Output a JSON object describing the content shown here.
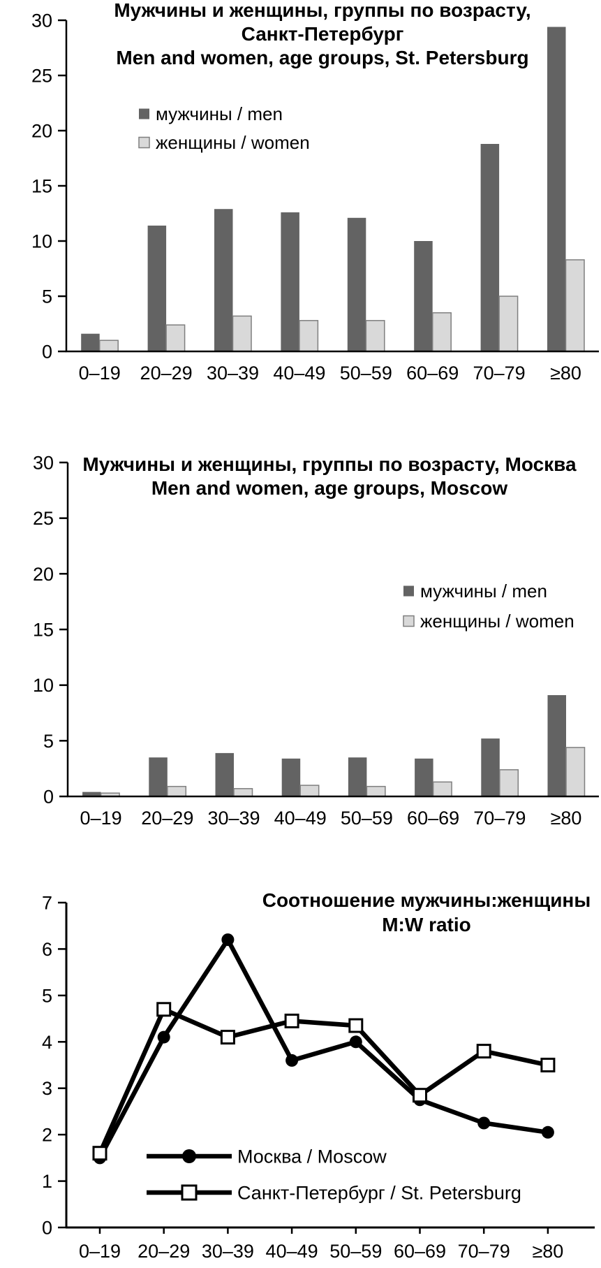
{
  "figure": {
    "background": "#ffffff",
    "text_color": "#000000"
  },
  "chart_data": [
    {
      "id": "spb-age-bars",
      "type": "bar",
      "title_lines": [
        "Мужчины и женщины, группы по возрасту,",
        "Санкт-Петербург",
        "Men and women, age groups, St. Petersburg"
      ],
      "categories": [
        "0–19",
        "20–29",
        "30–39",
        "40–49",
        "50–59",
        "60–69",
        "70–79",
        "≥80"
      ],
      "series": [
        {
          "name": "мужчины / men",
          "color": "#636363",
          "values": [
            1.6,
            11.4,
            12.9,
            12.6,
            12.1,
            10.0,
            18.8,
            29.4
          ]
        },
        {
          "name": "женщины / women",
          "color": "#d9d9d9",
          "border": "#7f7f7f",
          "values": [
            1.0,
            2.4,
            3.2,
            2.8,
            2.8,
            3.5,
            5.0,
            8.3
          ]
        }
      ],
      "ylim": [
        0,
        30
      ],
      "yticks": [
        0,
        5,
        10,
        15,
        20,
        25,
        30
      ],
      "grid": false,
      "legend_position": "upper-left"
    },
    {
      "id": "moscow-age-bars",
      "type": "bar",
      "title_lines": [
        "Мужчины и женщины, группы по возрасту, Москва",
        "Men and women, age groups, Moscow"
      ],
      "categories": [
        "0–19",
        "20–29",
        "30–39",
        "40–49",
        "50–59",
        "60–69",
        "70–79",
        "≥80"
      ],
      "series": [
        {
          "name": "мужчины / men",
          "color": "#636363",
          "values": [
            0.4,
            3.5,
            3.9,
            3.4,
            3.5,
            3.4,
            5.2,
            9.1
          ]
        },
        {
          "name": "женщины / women",
          "color": "#d9d9d9",
          "border": "#7f7f7f",
          "values": [
            0.3,
            0.9,
            0.7,
            1.0,
            0.9,
            1.3,
            2.4,
            4.4
          ]
        }
      ],
      "ylim": [
        0,
        30
      ],
      "yticks": [
        0,
        5,
        10,
        15,
        20,
        25,
        30
      ],
      "grid": false,
      "legend_position": "middle-right"
    },
    {
      "id": "mw-ratio-lines",
      "type": "line",
      "title_lines": [
        "Соотношение мужчины:женщины",
        "M:W ratio"
      ],
      "categories": [
        "0–19",
        "20–29",
        "30–39",
        "40–49",
        "50–59",
        "60–69",
        "70–79",
        "≥80"
      ],
      "series": [
        {
          "name": "Москва / Moscow",
          "marker": "circle",
          "color": "#000000",
          "values": [
            1.5,
            4.1,
            6.2,
            3.6,
            4.0,
            2.75,
            2.25,
            2.05
          ]
        },
        {
          "name": "Санкт-Петербург / St. Petersburg",
          "marker": "square",
          "color": "#000000",
          "values": [
            1.6,
            4.7,
            4.1,
            4.45,
            4.35,
            2.85,
            3.8,
            3.5
          ]
        }
      ],
      "ylim": [
        0,
        7
      ],
      "yticks": [
        0,
        1,
        2,
        3,
        4,
        5,
        6,
        7
      ],
      "grid": false,
      "legend_position": "lower-center"
    }
  ]
}
